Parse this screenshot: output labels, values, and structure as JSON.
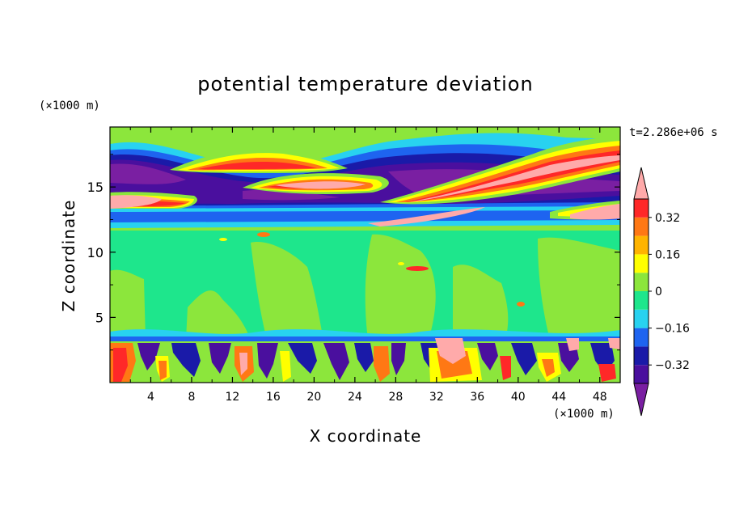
{
  "chart_data": {
    "type": "heatmap",
    "title": "potential temperature deviation",
    "xlabel": "X coordinate",
    "ylabel": "Z coordinate",
    "x_unit": "(×1000 m)",
    "y_unit": "(×1000 m)",
    "time_label": "t=2.286e+06 s",
    "xlim": [
      0,
      50
    ],
    "ylim": [
      0,
      19.6
    ],
    "x_ticks": [
      4,
      8,
      12,
      16,
      20,
      24,
      28,
      32,
      36,
      40,
      44,
      48
    ],
    "y_ticks": [
      5,
      10,
      15
    ],
    "colorbar": {
      "levels": [
        -0.4,
        -0.32,
        -0.24,
        -0.16,
        -0.08,
        0,
        0.08,
        0.16,
        0.24,
        0.32,
        0.4
      ],
      "tick_labels": [
        "0.32",
        "0.16",
        "0",
        "−0.16",
        "−0.32"
      ],
      "tick_values": [
        0.32,
        0.16,
        0,
        -0.16,
        -0.32
      ],
      "colors": [
        "#7a1fa2",
        "#4a0f9e",
        "#1a1aa8",
        "#1e64f0",
        "#28d2f0",
        "#1ee68c",
        "#8ce63c",
        "#ffff00",
        "#ffb400",
        "#ff7814",
        "#ff2828",
        "#ffaaaa"
      ]
    },
    "regions": [
      {
        "level": 6,
        "note": "background band (near-zero, +)"
      },
      {
        "level": 5,
        "note": "mid troposphere near-zero (−)"
      },
      {
        "level": 11,
        "note": "upper warm filaments"
      },
      {
        "level": 1,
        "note": "upper cold bands"
      },
      {
        "level": 1,
        "note": "boundary-layer cold plumes"
      },
      {
        "level": 9,
        "note": "boundary-layer warm plumes"
      }
    ]
  }
}
